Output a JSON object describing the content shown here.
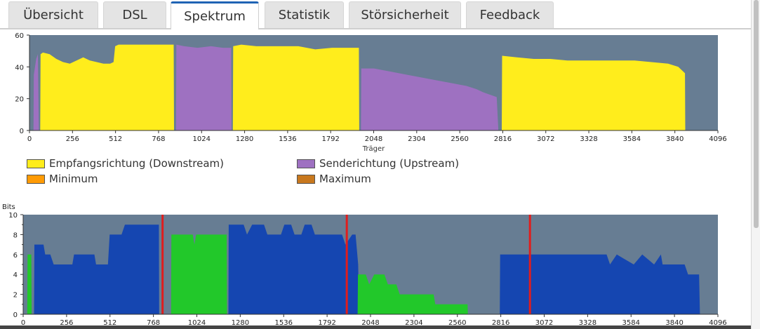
{
  "tabs": [
    "Übersicht",
    "DSL",
    "Spektrum",
    "Statistik",
    "Störsicherheit",
    "Feedback"
  ],
  "active_tab": "Spektrum",
  "colors": {
    "downstream": "#ffed1c",
    "upstream": "#9e71c1",
    "minimum": "#ff9b05",
    "maximum": "#c8781e",
    "snr_bg": "#677d93",
    "bits_bg": "#677d93",
    "bits_down": "#1546b1",
    "bits_up": "#22c82a",
    "pilot": "#e01d1d"
  },
  "legend": [
    {
      "label": "Empfangsrichtung (Downstream)",
      "color": "#ffed1c"
    },
    {
      "label": "Senderichtung (Upstream)",
      "color": "#9e71c1"
    },
    {
      "label": "Minimum",
      "color": "#ff9b05"
    },
    {
      "label": "Maximum",
      "color": "#c8781e"
    }
  ],
  "chart_data": [
    {
      "type": "area",
      "xlabel": "Träger",
      "ylabel": "",
      "xlim": [
        0,
        4096
      ],
      "ylim": [
        0,
        60
      ],
      "x_ticks": [
        0,
        256,
        512,
        768,
        1024,
        1280,
        1536,
        1792,
        2048,
        2304,
        2560,
        2816,
        3072,
        3328,
        3584,
        3840,
        4096
      ],
      "y_ticks": [
        0,
        20,
        40,
        60
      ],
      "series": [
        {
          "name": "Empfangsrichtung (Downstream)",
          "color": "#ffed1c",
          "points": [
            [
              64,
              0
            ],
            [
              66,
              48
            ],
            [
              80,
              49
            ],
            [
              120,
              48
            ],
            [
              160,
              45
            ],
            [
              200,
              43
            ],
            [
              240,
              42
            ],
            [
              280,
              44
            ],
            [
              320,
              46
            ],
            [
              360,
              44
            ],
            [
              400,
              43
            ],
            [
              440,
              42
            ],
            [
              480,
              42
            ],
            [
              500,
              43
            ],
            [
              510,
              53
            ],
            [
              530,
              54
            ],
            [
              600,
              54
            ],
            [
              700,
              54
            ],
            [
              760,
              54
            ],
            [
              858,
              54
            ],
            [
              860,
              0
            ]
          ]
        },
        {
          "name": "Empfangsrichtung (Downstream)",
          "color": "#ffed1c",
          "points": [
            [
              1210,
              0
            ],
            [
              1212,
              53
            ],
            [
              1260,
              54
            ],
            [
              1350,
              53
            ],
            [
              1450,
              53
            ],
            [
              1600,
              53
            ],
            [
              1700,
              51
            ],
            [
              1800,
              52
            ],
            [
              1880,
              52
            ],
            [
              1960,
              52
            ],
            [
              1962,
              0
            ]
          ]
        },
        {
          "name": "Empfangsrichtung (Downstream)",
          "color": "#ffed1c",
          "points": [
            [
              2810,
              0
            ],
            [
              2812,
              47
            ],
            [
              2900,
              46
            ],
            [
              3000,
              45
            ],
            [
              3100,
              45
            ],
            [
              3200,
              44
            ],
            [
              3300,
              44
            ],
            [
              3400,
              44
            ],
            [
              3500,
              44
            ],
            [
              3600,
              44
            ],
            [
              3700,
              43
            ],
            [
              3800,
              42
            ],
            [
              3860,
              40
            ],
            [
              3900,
              36
            ],
            [
              3902,
              0
            ]
          ]
        },
        {
          "name": "Senderichtung (Upstream)",
          "color": "#9e71c1",
          "points": [
            [
              24,
              0
            ],
            [
              26,
              35
            ],
            [
              40,
              45
            ],
            [
              50,
              48
            ],
            [
              56,
              0
            ]
          ]
        },
        {
          "name": "Senderichtung (Upstream)",
          "color": "#9e71c1",
          "points": [
            [
              872,
              0
            ],
            [
              874,
              54
            ],
            [
              920,
              53
            ],
            [
              1000,
              52
            ],
            [
              1080,
              53
            ],
            [
              1150,
              52
            ],
            [
              1200,
              52
            ],
            [
              1202,
              0
            ]
          ]
        },
        {
          "name": "Senderichtung (Upstream)",
          "color": "#9e71c1",
          "points": [
            [
              1972,
              0
            ],
            [
              1974,
              39
            ],
            [
              2050,
              39
            ],
            [
              2150,
              37
            ],
            [
              2250,
              35
            ],
            [
              2350,
              33
            ],
            [
              2450,
              31
            ],
            [
              2550,
              29
            ],
            [
              2600,
              28
            ],
            [
              2660,
              26
            ],
            [
              2700,
              24
            ],
            [
              2780,
              21
            ],
            [
              2790,
              0
            ]
          ]
        }
      ]
    },
    {
      "type": "area",
      "title": "Bits",
      "xlabel": "",
      "xlim": [
        0,
        4096
      ],
      "ylim": [
        0,
        10
      ],
      "x_ticks": [
        0,
        256,
        512,
        768,
        1024,
        1280,
        1536,
        1792,
        2048,
        2304,
        2560,
        2816,
        3072,
        3328,
        3584,
        3840,
        4096
      ],
      "y_ticks": [
        0,
        2,
        4,
        6,
        8,
        10
      ],
      "series": [
        {
          "name": "Empfangsrichtung (Downstream)",
          "color": "#1546b1",
          "points": [
            [
              64,
              0
            ],
            [
              66,
              7
            ],
            [
              120,
              7
            ],
            [
              130,
              6
            ],
            [
              160,
              6
            ],
            [
              180,
              5
            ],
            [
              290,
              5
            ],
            [
              300,
              6
            ],
            [
              420,
              6
            ],
            [
              430,
              5
            ],
            [
              500,
              5
            ],
            [
              510,
              8
            ],
            [
              580,
              8
            ],
            [
              600,
              9
            ],
            [
              800,
              9
            ],
            [
              802,
              0
            ]
          ]
        },
        {
          "name": "Empfangsrichtung (Downstream)",
          "color": "#1546b1",
          "points": [
            [
              1210,
              0
            ],
            [
              1212,
              9
            ],
            [
              1300,
              9
            ],
            [
              1320,
              8
            ],
            [
              1350,
              9
            ],
            [
              1420,
              9
            ],
            [
              1440,
              8
            ],
            [
              1520,
              8
            ],
            [
              1540,
              9
            ],
            [
              1580,
              9
            ],
            [
              1600,
              8
            ],
            [
              1640,
              8
            ],
            [
              1660,
              9
            ],
            [
              1700,
              9
            ],
            [
              1720,
              8
            ],
            [
              1880,
              8
            ],
            [
              1900,
              7
            ],
            [
              1940,
              8
            ],
            [
              1960,
              8
            ],
            [
              1975,
              5
            ],
            [
              1980,
              0
            ]
          ]
        },
        {
          "name": "Empfangsrichtung (Downstream)",
          "color": "#1546b1",
          "points": [
            [
              2810,
              0
            ],
            [
              2812,
              6
            ],
            [
              3300,
              6
            ],
            [
              3440,
              6
            ],
            [
              3460,
              5
            ],
            [
              3500,
              6
            ],
            [
              3600,
              5
            ],
            [
              3650,
              6
            ],
            [
              3720,
              5
            ],
            [
              3760,
              6
            ],
            [
              3770,
              5
            ],
            [
              3900,
              5
            ],
            [
              3920,
              4
            ],
            [
              3985,
              4
            ],
            [
              3990,
              0
            ]
          ]
        },
        {
          "name": "Senderichtung (Upstream)",
          "color": "#22c82a",
          "points": [
            [
              24,
              0
            ],
            [
              26,
              6
            ],
            [
              48,
              6
            ],
            [
              50,
              0
            ]
          ]
        },
        {
          "name": "Senderichtung (Upstream)",
          "color": "#22c82a",
          "points": [
            [
              872,
              0
            ],
            [
              874,
              8
            ],
            [
              1000,
              8
            ],
            [
              1010,
              7
            ],
            [
              1020,
              8
            ],
            [
              1200,
              8
            ],
            [
              1202,
              0
            ]
          ]
        },
        {
          "name": "Senderichtung (Upstream)",
          "color": "#22c82a",
          "points": [
            [
              1972,
              0
            ],
            [
              1974,
              4
            ],
            [
              2020,
              4
            ],
            [
              2040,
              3
            ],
            [
              2070,
              4
            ],
            [
              2130,
              4
            ],
            [
              2150,
              3
            ],
            [
              2200,
              3
            ],
            [
              2220,
              2
            ],
            [
              2350,
              2
            ],
            [
              2420,
              2
            ],
            [
              2430,
              1
            ],
            [
              2620,
              1
            ],
            [
              2622,
              0
            ]
          ]
        }
      ],
      "markers": [
        822,
        1908,
        2988
      ]
    }
  ]
}
